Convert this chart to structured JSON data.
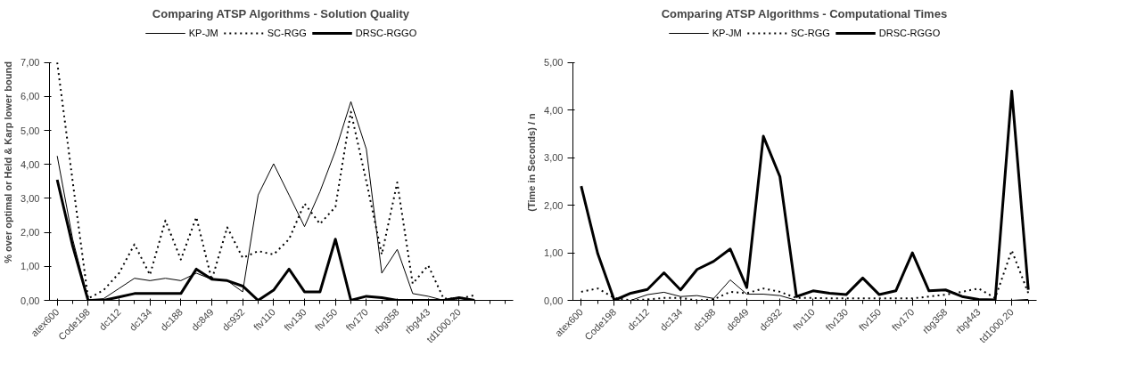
{
  "chart_data": [
    {
      "type": "line",
      "title": "Comparing ATSP Algorithms - Solution Quality",
      "ylabel": "% over optimal or Held & Karp lower bound",
      "categories": [
        "atex600",
        null,
        "Code198",
        null,
        "dc112",
        null,
        "dc134",
        null,
        "dc188",
        null,
        "dc849",
        null,
        "dc932",
        null,
        "ftv110",
        null,
        "ftv130",
        null,
        "ftv150",
        null,
        "ftv170",
        null,
        "rbg358",
        null,
        "rbg443",
        null,
        "td1000.20",
        null,
        null,
        null
      ],
      "series": [
        {
          "name": "KP-JM",
          "color": "#000000",
          "line_style": "solid",
          "values": [
            4.25,
            1.8,
            0.02,
            0.05,
            0.35,
            0.65,
            0.58,
            0.65,
            0.58,
            0.8,
            0.62,
            0.58,
            0.25,
            3.1,
            4.02,
            3.1,
            2.17,
            3.2,
            4.4,
            5.85,
            4.45,
            0.8,
            1.5,
            0.2,
            0.12,
            0.0,
            0.0,
            0.0,
            null,
            null
          ]
        },
        {
          "name": "SC-RGG",
          "color": "#000000",
          "line_style": "dotted",
          "values": [
            7.0,
            3.5,
            0.05,
            0.3,
            0.8,
            1.65,
            0.75,
            2.35,
            1.2,
            2.45,
            0.6,
            2.15,
            1.25,
            1.45,
            1.35,
            1.8,
            2.85,
            2.25,
            2.75,
            5.55,
            3.5,
            1.35,
            3.47,
            0.49,
            1.03,
            0.05,
            0.05,
            0.15,
            null,
            null
          ]
        },
        {
          "name": "DRSC-RGGO",
          "color": "#000000",
          "line_style": "solid",
          "values": [
            3.55,
            1.6,
            0.0,
            0.0,
            0.1,
            0.2,
            0.2,
            0.2,
            0.2,
            0.92,
            0.62,
            0.58,
            0.42,
            0.0,
            0.3,
            0.92,
            0.25,
            0.25,
            1.8,
            0.0,
            0.12,
            0.08,
            0.0,
            0.0,
            0.0,
            0.0,
            0.08,
            0.0,
            null,
            null
          ]
        }
      ],
      "ylim": [
        0,
        7
      ],
      "yticks": [
        {
          "value": 0,
          "label": "0,00"
        },
        {
          "value": 1,
          "label": "1,00"
        },
        {
          "value": 2,
          "label": "2,00"
        },
        {
          "value": 3,
          "label": "3,00"
        },
        {
          "value": 4,
          "label": "4,00"
        },
        {
          "value": 5,
          "label": "5,00"
        },
        {
          "value": 6,
          "label": "6,00"
        },
        {
          "value": 7,
          "label": "7,00"
        }
      ],
      "grid": false,
      "legend": "top",
      "marker": "none"
    },
    {
      "type": "line",
      "title": "Comparing ATSP Algorithms - Computational Times",
      "ylabel": "(Time in Seconds) / n",
      "categories": [
        "atex600",
        null,
        "Code198",
        null,
        "dc112",
        null,
        "dc134",
        null,
        "dc188",
        null,
        "dc849",
        null,
        "dc932",
        null,
        "ftv110",
        null,
        "ftv130",
        null,
        "ftv150",
        null,
        "ftv170",
        null,
        "rbg358",
        null,
        "rbg443",
        null,
        "td1000.20",
        null
      ],
      "series": [
        {
          "name": "KP-JM",
          "color": "#000000",
          "line_style": "solid",
          "values": [
            0.0,
            0.0,
            0.0,
            0.0,
            0.12,
            0.17,
            0.08,
            0.1,
            0.04,
            0.43,
            0.13,
            0.13,
            0.1,
            0.0,
            0.0,
            0.0,
            0.0,
            0.0,
            0.0,
            0.0,
            0.0,
            0.0,
            0.0,
            0.0,
            0.0,
            0.0,
            0.0,
            0.02
          ]
        },
        {
          "name": "SC-RGG",
          "color": "#000000",
          "line_style": "dotted",
          "values": [
            0.18,
            0.25,
            0.05,
            0.0,
            0.02,
            0.05,
            0.05,
            0.0,
            0.02,
            0.18,
            0.15,
            0.25,
            0.18,
            0.05,
            0.05,
            0.04,
            0.04,
            0.04,
            0.04,
            0.04,
            0.04,
            0.08,
            0.12,
            0.18,
            0.25,
            0.05,
            1.05,
            0.15
          ]
        },
        {
          "name": "DRSC-RGGO",
          "color": "#000000",
          "line_style": "solid",
          "values": [
            2.4,
            0.98,
            0.0,
            0.15,
            0.23,
            0.58,
            0.22,
            0.65,
            0.82,
            1.08,
            0.27,
            3.45,
            2.6,
            0.08,
            0.2,
            0.15,
            0.12,
            0.47,
            0.12,
            0.2,
            1.0,
            0.2,
            0.22,
            0.08,
            0.02,
            0.01,
            4.4,
            0.22
          ]
        }
      ],
      "ylim": [
        0,
        5
      ],
      "yticks": [
        {
          "value": 0,
          "label": "0,00"
        },
        {
          "value": 1,
          "label": "1,00"
        },
        {
          "value": 2,
          "label": "2,00"
        },
        {
          "value": 3,
          "label": "3,00"
        },
        {
          "value": 4,
          "label": "4,00"
        },
        {
          "value": 5,
          "label": "5,00"
        }
      ],
      "grid": false,
      "legend": "top",
      "marker": "none"
    }
  ]
}
